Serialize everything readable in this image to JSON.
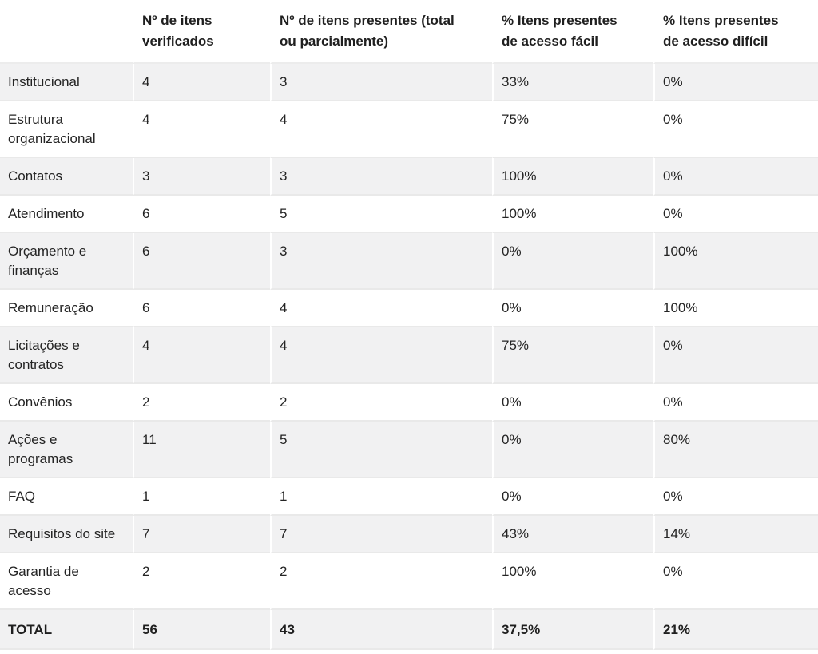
{
  "table": {
    "headers": [
      "",
      "Nº de itens verificados",
      "Nº de itens presentes (total ou parcialmente)",
      "% Itens presentes de acesso fácil",
      "% Itens presentes de acesso difícil"
    ],
    "rows": [
      {
        "label": "Institucional",
        "verificados": "4",
        "presentes": "3",
        "facil": "33%",
        "dificil": "0%"
      },
      {
        "label": "Estrutura organizacional",
        "verificados": "4",
        "presentes": "4",
        "facil": "75%",
        "dificil": "0%"
      },
      {
        "label": "Contatos",
        "verificados": "3",
        "presentes": "3",
        "facil": "100%",
        "dificil": "0%"
      },
      {
        "label": "Atendimento",
        "verificados": "6",
        "presentes": "5",
        "facil": "100%",
        "dificil": "0%"
      },
      {
        "label": "Orçamento e finanças",
        "verificados": "6",
        "presentes": "3",
        "facil": "0%",
        "dificil": "100%"
      },
      {
        "label": "Remuneração",
        "verificados": "6",
        "presentes": "4",
        "facil": "0%",
        "dificil": "100%"
      },
      {
        "label": "Licitações e contratos",
        "verificados": "4",
        "presentes": "4",
        "facil": "75%",
        "dificil": "0%"
      },
      {
        "label": "Convênios",
        "verificados": "2",
        "presentes": "2",
        "facil": "0%",
        "dificil": "0%"
      },
      {
        "label": "Ações e programas",
        "verificados": "11",
        "presentes": "5",
        "facil": "0%",
        "dificil": "80%"
      },
      {
        "label": "FAQ",
        "verificados": "1",
        "presentes": "1",
        "facil": "0%",
        "dificil": "0%"
      },
      {
        "label": "Requisitos do site",
        "verificados": "7",
        "presentes": "7",
        "facil": "43%",
        "dificil": "14%"
      },
      {
        "label": "Garantia de acesso",
        "verificados": "2",
        "presentes": "2",
        "facil": "100%",
        "dificil": "0%"
      },
      {
        "label": "TOTAL",
        "verificados": "56",
        "presentes": "43",
        "facil": "37,5%",
        "dificil": "21%"
      }
    ]
  },
  "colors": {
    "row_alt_bg": "#f1f1f2",
    "row_border": "#e9e9e9",
    "divider": "#ffffff",
    "header_text": "#1f1f1f",
    "body_text": "#242424"
  },
  "chart_data": {
    "type": "table",
    "title": "",
    "columns": [
      "",
      "Nº de itens verificados",
      "Nº de itens presentes (total ou parcialmente)",
      "% Itens presentes de acesso fácil",
      "% Itens presentes de acesso difícil"
    ],
    "rows": [
      [
        "Institucional",
        4,
        3,
        "33%",
        "0%"
      ],
      [
        "Estrutura organizacional",
        4,
        4,
        "75%",
        "0%"
      ],
      [
        "Contatos",
        3,
        3,
        "100%",
        "0%"
      ],
      [
        "Atendimento",
        6,
        5,
        "100%",
        "0%"
      ],
      [
        "Orçamento e finanças",
        6,
        3,
        "0%",
        "100%"
      ],
      [
        "Remuneração",
        6,
        4,
        "0%",
        "100%"
      ],
      [
        "Licitações e contratos",
        4,
        4,
        "75%",
        "0%"
      ],
      [
        "Convênios",
        2,
        2,
        "0%",
        "0%"
      ],
      [
        "Ações e programas",
        11,
        5,
        "0%",
        "80%"
      ],
      [
        "FAQ",
        1,
        1,
        "0%",
        "0%"
      ],
      [
        "Requisitos do site",
        7,
        7,
        "43%",
        "14%"
      ],
      [
        "Garantia de acesso",
        2,
        2,
        "100%",
        "0%"
      ],
      [
        "TOTAL",
        56,
        43,
        "37,5%",
        "21%"
      ]
    ],
    "notes": "Striped data table; TOTAL row is bold; stripes on rows 1,3,5,7,9,11,13"
  }
}
